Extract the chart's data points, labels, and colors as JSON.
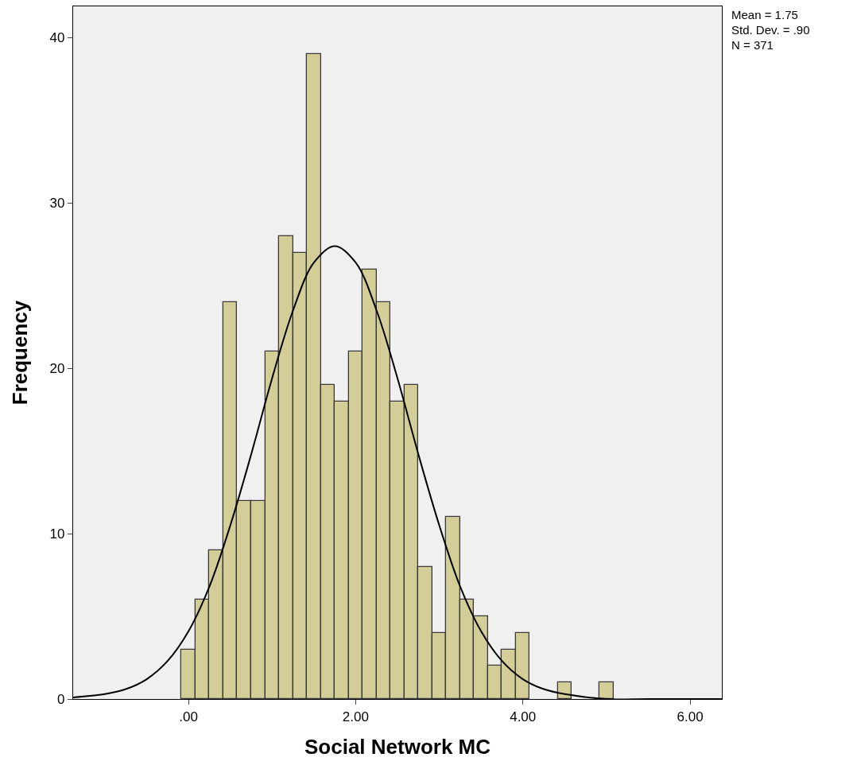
{
  "chart_data": {
    "type": "histogram",
    "xlabel": "Social Network MC",
    "ylabel": "Frequency",
    "bins": [
      -0.083,
      0.083,
      0.25,
      0.417,
      0.583,
      0.75,
      0.917,
      1.083,
      1.25,
      1.417,
      1.583,
      1.75,
      1.917,
      2.083,
      2.25,
      2.417,
      2.583,
      2.75,
      2.917,
      3.083,
      3.25,
      3.417,
      3.583,
      3.75,
      3.917,
      4.083,
      4.25,
      4.417,
      4.583,
      4.75,
      4.917,
      5.083
    ],
    "values": [
      3,
      6,
      9,
      24,
      12,
      12,
      21,
      28,
      27,
      39,
      19,
      18,
      21,
      26,
      24,
      18,
      19,
      8,
      4,
      11,
      6,
      5,
      2,
      3,
      4,
      0,
      0,
      1,
      0,
      0,
      1
    ],
    "color": "#d3ce97",
    "series": [
      {
        "type": "line",
        "color": "#000000",
        "x": [
          -1.38,
          -1.0,
          -0.75,
          -0.5,
          -0.25,
          0,
          0.25,
          0.5,
          0.75,
          1.0,
          1.25,
          1.5,
          1.75,
          2.0,
          2.25,
          2.5,
          2.75,
          3.0,
          3.25,
          3.5,
          3.75,
          4.0,
          4.25,
          4.5,
          5.0,
          5.5,
          6.38
        ],
        "values": [
          0.1,
          0.3,
          0.6,
          1.2,
          2.3,
          4.1,
          6.8,
          10.5,
          14.8,
          19.4,
          23.5,
          26.4,
          27.4,
          26.4,
          23.5,
          19.4,
          14.8,
          10.5,
          6.8,
          4.1,
          2.3,
          1.2,
          0.6,
          0.3,
          0.0,
          0.0,
          0.0
        ]
      }
    ],
    "xlim": [
      -1.38,
      6.38
    ],
    "xticks": [
      {
        "value": 0,
        "label": ".00"
      },
      {
        "value": 2,
        "label": "2.00"
      },
      {
        "value": 4,
        "label": "4.00"
      },
      {
        "value": 6,
        "label": "6.00"
      }
    ],
    "ylim": [
      0,
      41.9
    ],
    "yticks": [
      0,
      10,
      20,
      30,
      40
    ],
    "grid": false,
    "annotations": [
      "Mean = 1.75",
      "Std. Dev. = .90",
      "N = 371"
    ]
  }
}
